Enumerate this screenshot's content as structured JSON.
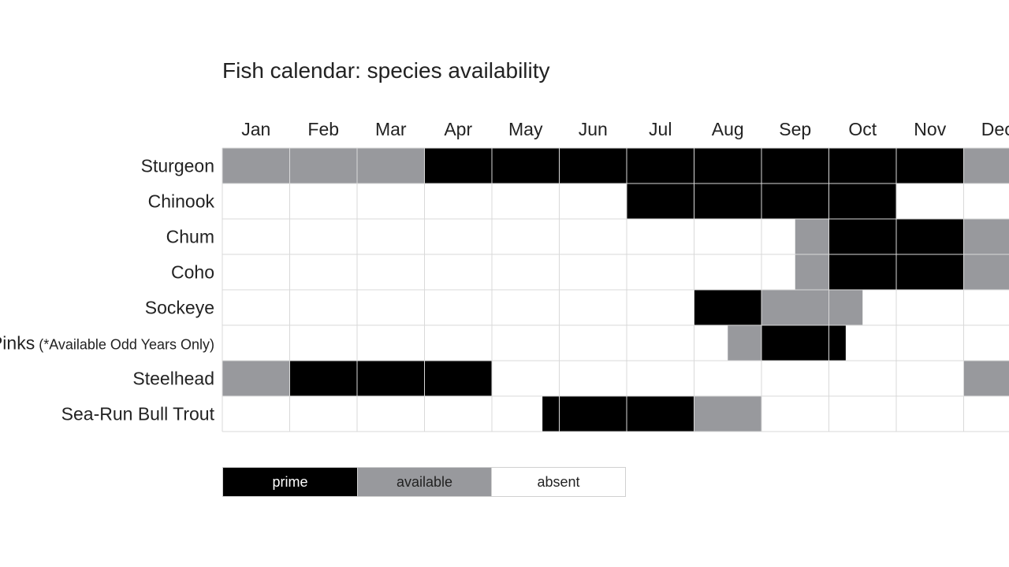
{
  "chart_data": {
    "type": "heatmap",
    "title": "Fish calendar: species availability",
    "months": [
      "Jan",
      "Feb",
      "Mar",
      "Apr",
      "May",
      "Jun",
      "Jul",
      "Aug",
      "Sep",
      "Oct",
      "Nov",
      "Dec"
    ],
    "legend": [
      {
        "key": "prime",
        "label": "prime",
        "color": "#000000",
        "text_color": "#ffffff"
      },
      {
        "key": "available",
        "label": "available",
        "color": "#98999d",
        "text_color": "#222222"
      },
      {
        "key": "absent",
        "label": "absent",
        "color": "#ffffff",
        "text_color": "#222222"
      }
    ],
    "colors": {
      "prime": "#000000",
      "available": "#98999d",
      "absent": "#ffffff",
      "grid": "#d9d9d9"
    },
    "rows": [
      {
        "name": "Sturgeon",
        "note": "",
        "segments": [
          {
            "status": "available",
            "start": 0,
            "end": 3
          },
          {
            "status": "prime",
            "start": 3,
            "end": 11
          },
          {
            "status": "available",
            "start": 11,
            "end": 12
          }
        ]
      },
      {
        "name": "Chinook",
        "note": "",
        "segments": [
          {
            "status": "prime",
            "start": 6,
            "end": 10
          }
        ]
      },
      {
        "name": "Chum",
        "note": "",
        "segments": [
          {
            "status": "available",
            "start": 8.5,
            "end": 9
          },
          {
            "status": "prime",
            "start": 9,
            "end": 11
          },
          {
            "status": "available",
            "start": 11,
            "end": 12
          }
        ]
      },
      {
        "name": "Coho",
        "note": "",
        "segments": [
          {
            "status": "available",
            "start": 8.5,
            "end": 9
          },
          {
            "status": "prime",
            "start": 9,
            "end": 11
          },
          {
            "status": "available",
            "start": 11,
            "end": 12
          }
        ]
      },
      {
        "name": "Sockeye",
        "note": "",
        "segments": [
          {
            "status": "prime",
            "start": 7,
            "end": 8
          },
          {
            "status": "available",
            "start": 8,
            "end": 9.5
          }
        ]
      },
      {
        "name": "Pinks",
        "note": "(*Available Odd Years Only)",
        "segments": [
          {
            "status": "available",
            "start": 7.5,
            "end": 8
          },
          {
            "status": "prime",
            "start": 8,
            "end": 9.25
          }
        ]
      },
      {
        "name": "Steelhead",
        "note": "",
        "segments": [
          {
            "status": "available",
            "start": 0,
            "end": 1
          },
          {
            "status": "prime",
            "start": 1,
            "end": 4
          },
          {
            "status": "available",
            "start": 11,
            "end": 12
          }
        ]
      },
      {
        "name": "Sea-Run Bull Trout",
        "note": "",
        "segments": [
          {
            "status": "prime",
            "start": 4.75,
            "end": 7
          },
          {
            "status": "available",
            "start": 7,
            "end": 8
          }
        ]
      }
    ]
  }
}
